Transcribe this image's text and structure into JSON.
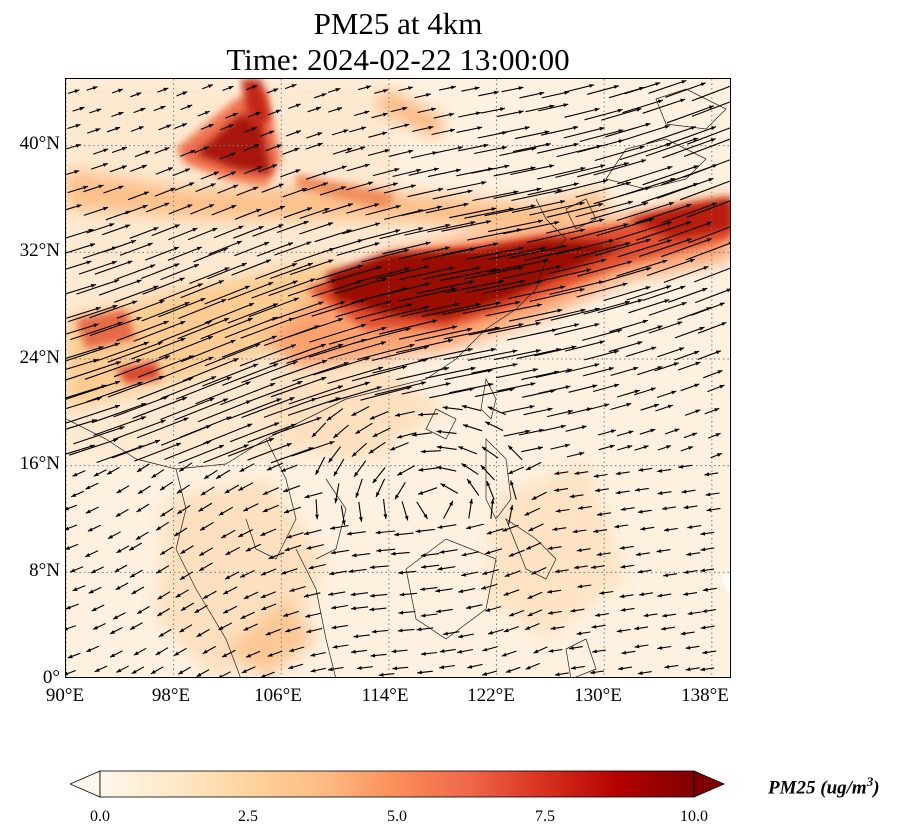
{
  "title": {
    "line1": "PM25 at 4km",
    "line2": "Time: 2024-02-22 13:00:00"
  },
  "map": {
    "extent": {
      "lon_min": 90,
      "lon_max": 139.5,
      "lat_min": 0,
      "lat_max": 45
    },
    "gridlines": "dotted",
    "y_ticks": [
      "0°",
      "8°N",
      "16°N",
      "24°N",
      "32°N",
      "40°N"
    ],
    "x_ticks": [
      "90°E",
      "98°E",
      "106°E",
      "114°E",
      "122°E",
      "130°E",
      "138°E"
    ],
    "y_tick_values": [
      0,
      8,
      16,
      24,
      32,
      40
    ],
    "x_tick_values": [
      90,
      98,
      106,
      114,
      122,
      130,
      138
    ]
  },
  "colorbar": {
    "label": "PM25 (ug/m",
    "label_sup": "3",
    "label_close": ")",
    "ticks": [
      "0.0",
      "2.5",
      "5.0",
      "7.5",
      "10.0"
    ],
    "tick_values": [
      0,
      2.5,
      5,
      7.5,
      10
    ],
    "range": [
      0,
      10
    ],
    "colormap": "OrRd",
    "colors": [
      "#fff7ec",
      "#fee8c8",
      "#fdd49e",
      "#fdbb84",
      "#fc8d59",
      "#ef6548",
      "#d7301f",
      "#b30000",
      "#7f0000"
    ],
    "extend": "both"
  }
}
